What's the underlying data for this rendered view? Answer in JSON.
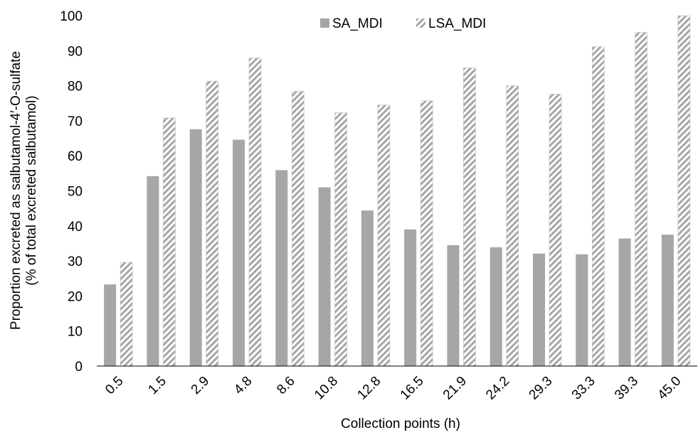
{
  "colors": {
    "sa_bar": "#a6a6a6",
    "lsa_hatch": "#a6a6a6",
    "lsa_bg": "#ffffff",
    "axis": "#000000"
  },
  "chart_data": {
    "type": "bar",
    "title": "",
    "xlabel": "Collection points (h)",
    "ylabel": "Proportion excreted as salbutamol-4′-O-sulfate",
    "ylabel_line2": "(% of total excreted salbutamol)",
    "ylim": [
      0,
      100
    ],
    "yticks": [
      0,
      10,
      20,
      30,
      40,
      50,
      60,
      70,
      80,
      90,
      100
    ],
    "grid": false,
    "legend_position": "top-center",
    "categories": [
      "0.5",
      "1.5",
      "2.9",
      "4.8",
      "8.6",
      "10.8",
      "12.8",
      "16.5",
      "21.9",
      "24.2",
      "29.3",
      "33.3",
      "39.3",
      "45.0"
    ],
    "series": [
      {
        "name": "SA_MDI",
        "style": "solid",
        "values": [
          23.3,
          54.2,
          67.6,
          64.6,
          55.9,
          51.0,
          44.4,
          39.0,
          34.5,
          33.9,
          32.1,
          31.9,
          36.4,
          37.5
        ]
      },
      {
        "name": "LSA_MDI",
        "style": "hatched",
        "values": [
          29.6,
          70.8,
          81.3,
          87.9,
          78.4,
          72.3,
          74.5,
          75.7,
          85.1,
          80.0,
          77.6,
          91.1,
          95.2,
          100.0
        ]
      }
    ]
  }
}
